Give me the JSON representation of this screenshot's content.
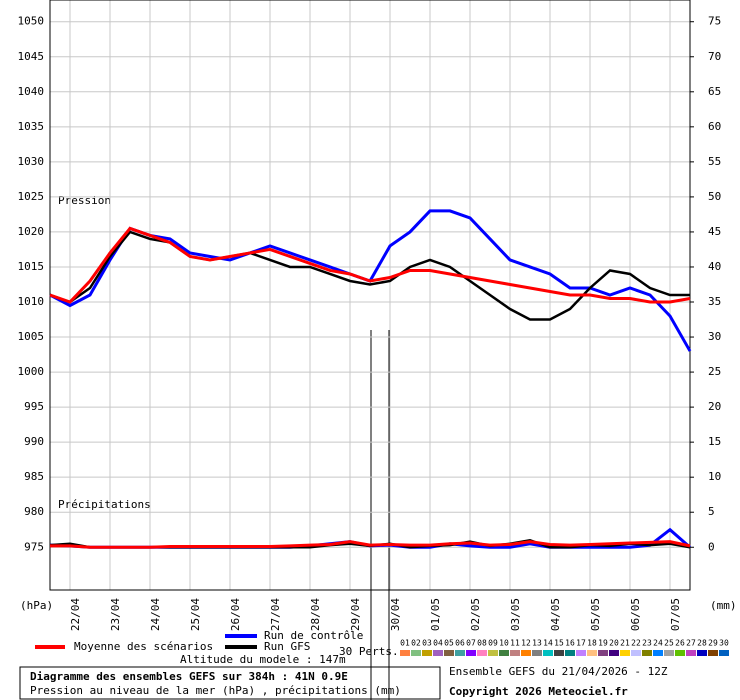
{
  "chart_data": {
    "type": "line",
    "title": "Diagramme des ensembles GEFS sur 384h : 41N 0.9E",
    "subtitle": "Pression au niveau de la mer (hPa) , précipitations (mm)",
    "run_label": "Ensemble GEFS du 21/04/2026 - 12Z",
    "copyright": "Copyright 2026 Meteociel.fr",
    "altitude": "Altitude du modele : 147m",
    "perts_label": "30 Perts.",
    "ylabel": "(hPa)",
    "y2label": "(mm)",
    "annotations": [
      "Pression",
      "Précipitations"
    ],
    "grid": true,
    "xlim": [
      0,
      384
    ],
    "xticks": [
      {
        "value": 12,
        "label": "22/04"
      },
      {
        "value": 36,
        "label": "23/04"
      },
      {
        "value": 60,
        "label": "24/04"
      },
      {
        "value": 84,
        "label": "25/04"
      },
      {
        "value": 108,
        "label": "26/04"
      },
      {
        "value": 132,
        "label": "27/04"
      },
      {
        "value": 156,
        "label": "28/04"
      },
      {
        "value": 180,
        "label": "29/04"
      },
      {
        "value": 204,
        "label": "30/04"
      },
      {
        "value": 228,
        "label": "01/05"
      },
      {
        "value": 252,
        "label": "02/05"
      },
      {
        "value": 276,
        "label": "03/05"
      },
      {
        "value": 300,
        "label": "04/05"
      },
      {
        "value": 324,
        "label": "05/05"
      },
      {
        "value": 348,
        "label": "06/05"
      },
      {
        "value": 372,
        "label": "07/05"
      }
    ],
    "ylim": [
      968.9,
      1053.1
    ],
    "yticks": [
      975,
      980,
      985,
      990,
      995,
      1000,
      1005,
      1010,
      1015,
      1020,
      1025,
      1030,
      1035,
      1040,
      1045,
      1050
    ],
    "y2lim": [
      -6.1,
      78.1
    ],
    "y2ticks": [
      0,
      5,
      10,
      15,
      20,
      25,
      30,
      35,
      40,
      45,
      50,
      55,
      60,
      65,
      70,
      75
    ],
    "x": [
      0,
      12,
      24,
      36,
      48,
      60,
      72,
      84,
      96,
      108,
      120,
      132,
      144,
      156,
      168,
      180,
      192,
      204,
      216,
      228,
      240,
      252,
      264,
      276,
      288,
      300,
      312,
      324,
      336,
      348,
      360,
      372,
      384
    ],
    "series": [
      {
        "name": "Moyenne des scénarios",
        "color": "#ff0000",
        "values": [
          1011,
          1010,
          1013,
          1017,
          1020.5,
          1019.5,
          1018.5,
          1016.5,
          1016,
          1016.5,
          1017,
          1017.5,
          1016.5,
          1015.5,
          1014.5,
          1014,
          1013,
          1013.5,
          1014.5,
          1014.5,
          1014,
          1013.5,
          1013,
          1012.5,
          1012,
          1011.5,
          1011,
          1011,
          1010.5,
          1010.5,
          1010,
          1010,
          1010.5
        ]
      },
      {
        "name": "Run de contrôle",
        "color": "#0000ff",
        "values": [
          1011,
          1009.5,
          1011,
          1016,
          1020.5,
          1019.5,
          1019,
          1017,
          1016.5,
          1016,
          1017,
          1018,
          1017,
          1016,
          1015,
          1014,
          1013,
          1018,
          1020,
          1023,
          1023,
          1022,
          1019,
          1016,
          1015,
          1014,
          1012,
          1012,
          1011,
          1012,
          1011,
          1008,
          1003
        ]
      },
      {
        "name": "Run GFS",
        "color": "#000000",
        "values": [
          1011,
          1010,
          1012,
          1016.5,
          1020,
          1019,
          1018.5,
          1016.5,
          1016,
          1016.5,
          1017,
          1016,
          1015,
          1015,
          1014,
          1013,
          1012.5,
          1013,
          1015,
          1016,
          1015,
          1013,
          1011,
          1009,
          1007.5,
          1007.5,
          1009,
          1012,
          1014.5,
          1014,
          1012,
          1011,
          1011
        ]
      },
      {
        "name": "Moyenne des scénarios",
        "color": "#ff0000",
        "axis": "y2",
        "values": [
          0.2,
          0.2,
          0,
          0,
          0,
          0,
          0.1,
          0.1,
          0.1,
          0.1,
          0.1,
          0.1,
          0.2,
          0.3,
          0.4,
          0.8,
          0.3,
          0.4,
          0.3,
          0.3,
          0.5,
          0.6,
          0.3,
          0.4,
          0.8,
          0.4,
          0.3,
          0.4,
          0.5,
          0.6,
          0.7,
          0.8,
          0.2
        ]
      },
      {
        "name": "Run de contrôle",
        "color": "#0000ff",
        "axis": "y2",
        "values": [
          0.3,
          0.2,
          0,
          0,
          0,
          0,
          0,
          0,
          0,
          0,
          0,
          0,
          0,
          0.2,
          0.5,
          0.8,
          0.2,
          0.3,
          0,
          0,
          0.5,
          0.2,
          0,
          0,
          0.5,
          0,
          0,
          0,
          0,
          0,
          0.3,
          2.5,
          0
        ]
      },
      {
        "name": "Run GFS",
        "color": "#000000",
        "axis": "y2",
        "values": [
          0.3,
          0.5,
          0,
          0,
          0,
          0,
          0,
          0,
          0,
          0,
          0,
          0,
          0,
          0,
          0.3,
          0.5,
          0.2,
          0.5,
          0,
          0.2,
          0.3,
          0.8,
          0.2,
          0.5,
          1,
          0,
          0,
          0.3,
          0.2,
          0.5,
          0.3,
          0.5,
          0
        ]
      }
    ],
    "members": [
      {
        "name": "01",
        "color": "#ff8040"
      },
      {
        "name": "02",
        "color": "#80c080"
      },
      {
        "name": "03",
        "color": "#c0a000"
      },
      {
        "name": "04",
        "color": "#a060c0"
      },
      {
        "name": "05",
        "color": "#806040"
      },
      {
        "name": "06",
        "color": "#40a0a0"
      },
      {
        "name": "07",
        "color": "#8000ff"
      },
      {
        "name": "08",
        "color": "#ff80c0"
      },
      {
        "name": "09",
        "color": "#c0c040"
      },
      {
        "name": "10",
        "color": "#408040"
      },
      {
        "name": "11",
        "color": "#c08080"
      },
      {
        "name": "12",
        "color": "#ff8000"
      },
      {
        "name": "13",
        "color": "#808080"
      },
      {
        "name": "14",
        "color": "#00c0c0"
      },
      {
        "name": "15",
        "color": "#404040"
      },
      {
        "name": "16",
        "color": "#008080"
      },
      {
        "name": "17",
        "color": "#c080ff"
      },
      {
        "name": "18",
        "color": "#ffc080"
      },
      {
        "name": "19",
        "color": "#804080"
      },
      {
        "name": "20",
        "color": "#400080"
      },
      {
        "name": "21",
        "color": "#ffd000"
      },
      {
        "name": "22",
        "color": "#c0c0ff"
      },
      {
        "name": "23",
        "color": "#808000"
      },
      {
        "name": "24",
        "color": "#0080ff"
      },
      {
        "name": "25",
        "color": "#a0a0a0"
      },
      {
        "name": "26",
        "color": "#60c000"
      },
      {
        "name": "27",
        "color": "#c040c0"
      },
      {
        "name": "28",
        "color": "#0000c0"
      },
      {
        "name": "29",
        "color": "#804000"
      },
      {
        "name": "30",
        "color": "#0060c0"
      }
    ]
  }
}
